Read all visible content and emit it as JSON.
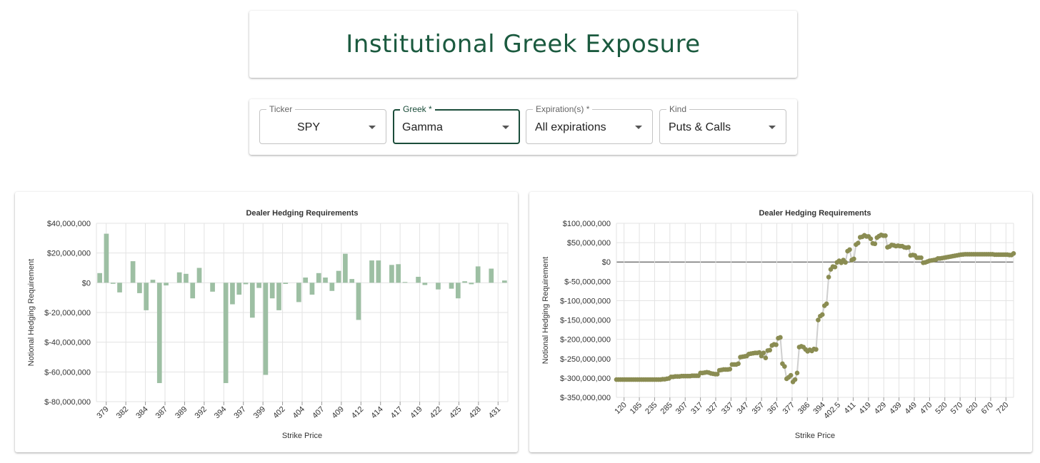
{
  "header": {
    "title": "Institutional Greek Exposure"
  },
  "controls": {
    "ticker": {
      "label": "Ticker",
      "value": "SPY"
    },
    "greek": {
      "label": "Greek *",
      "value": "Gamma"
    },
    "expiration": {
      "label": "Expiration(s) *",
      "value": "All expirations"
    },
    "kind": {
      "label": "Kind",
      "value": "Puts & Calls"
    }
  },
  "icons": {
    "dropdown": "caret-down-icon"
  },
  "colors": {
    "title": "#1b5a3f",
    "bar": "#9dbfa3",
    "point": "#8a8c52",
    "line": "#cfcfcf",
    "active_border": "#1b4d3a"
  },
  "chart_data": [
    {
      "type": "bar",
      "title": "Dealer Hedging Requirements",
      "xlabel": "Strike Price",
      "ylabel": "Notional Hedging Requirement",
      "ylim": [
        -80000000,
        40000000
      ],
      "yticks": [
        40000000,
        20000000,
        0,
        -20000000,
        -40000000,
        -60000000,
        -80000000
      ],
      "ytick_labels": [
        "$40,000,000",
        "$20,000,000",
        "$0",
        "$-20,000,000",
        "$-40,000,000",
        "$-60,000,000",
        "$-80,000,000"
      ],
      "tick_labels": [
        "379",
        "382",
        "384",
        "387",
        "389",
        "392",
        "394",
        "397",
        "399",
        "402",
        "404",
        "407",
        "409",
        "412",
        "414",
        "417",
        "419",
        "422",
        "425",
        "428",
        "431"
      ],
      "grid": true,
      "values": [
        6500000,
        33000000,
        -700000,
        -6500000,
        0,
        14500000,
        -7000000,
        -18500000,
        2000000,
        -67500000,
        -1800000,
        0,
        7000000,
        6000000,
        -10500000,
        10000000,
        0,
        -6000000,
        0,
        -67500000,
        -14500000,
        -8000000,
        -1000000,
        -23500000,
        -3500000,
        -62000000,
        -10500000,
        -18500000,
        -800000,
        0,
        -13000000,
        3500000,
        -8000000,
        6500000,
        3500000,
        -5500000,
        8000000,
        19500000,
        2500000,
        -25000000,
        0,
        15000000,
        15000000,
        0,
        12000000,
        12500000,
        500000,
        0,
        4000000,
        -1500000,
        0,
        -4500000,
        0,
        -4000000,
        -10500000,
        1000000,
        -1000000,
        11000000,
        0,
        9500000,
        0,
        1500000
      ]
    },
    {
      "type": "scatter",
      "title": "Dealer Hedging Requirements",
      "xlabel": "Strike Price",
      "ylabel": "Notional Hedging Requirement",
      "ylim": [
        -350000000,
        100000000
      ],
      "yticks": [
        100000000,
        50000000,
        0,
        -50000000,
        -100000000,
        -150000000,
        -200000000,
        -250000000,
        -300000000,
        -350000000
      ],
      "ytick_labels": [
        "$100,000,000",
        "$50,000,000",
        "$0",
        "$-50,000,000",
        "$-100,000,000",
        "$-150,000,000",
        "$-200,000,000",
        "$-250,000,000",
        "$-300,000,000",
        "$-350,000,000"
      ],
      "tick_labels": [
        "120",
        "185",
        "235",
        "285",
        "307",
        "317",
        "327",
        "337",
        "347",
        "357",
        "367",
        "377",
        "386",
        "394",
        "402.5",
        "411",
        "419",
        "429",
        "439",
        "449",
        "470",
        "520",
        "570",
        "620",
        "670",
        "720"
      ],
      "grid": true,
      "connected": true,
      "values": [
        -304000000,
        -304000000,
        -304000000,
        -304000000,
        -304000000,
        -304000000,
        -304000000,
        -304000000,
        -304000000,
        -304000000,
        -304000000,
        -304000000,
        -304000000,
        -304000000,
        -304000000,
        -304000000,
        -304000000,
        -304000000,
        -304000000,
        -304000000,
        -304000000,
        -304000000,
        -303000000,
        -303000000,
        -302000000,
        -301000000,
        -297000000,
        -297000000,
        -296000000,
        -296000000,
        -296000000,
        -295000000,
        -295000000,
        -295000000,
        -295000000,
        -295000000,
        -294000000,
        -294000000,
        -294000000,
        -294000000,
        -287000000,
        -287000000,
        -286000000,
        -285000000,
        -286000000,
        -288000000,
        -289000000,
        -290000000,
        -290000000,
        -280000000,
        -279000000,
        -278000000,
        -278000000,
        -278000000,
        -277000000,
        -265000000,
        -265000000,
        -265000000,
        -263000000,
        -246000000,
        -245000000,
        -244000000,
        -243000000,
        -238000000,
        -237000000,
        -236000000,
        -235000000,
        -235000000,
        -234000000,
        -243000000,
        -235000000,
        -248000000,
        -229000000,
        -228000000,
        -216000000,
        -213000000,
        -214000000,
        -197000000,
        -195000000,
        -263000000,
        -270000000,
        -302000000,
        -298000000,
        -293000000,
        -310000000,
        -304000000,
        -287000000,
        -220000000,
        -218000000,
        -220000000,
        -226000000,
        -231000000,
        -227000000,
        -230000000,
        -225000000,
        -226000000,
        -150000000,
        -140000000,
        -136000000,
        -113000000,
        -108000000,
        -39000000,
        -19000000,
        -12000000,
        -13000000,
        -1000000,
        3000000,
        -2000000,
        5000000,
        -1000000,
        28000000,
        32000000,
        5000000,
        8000000,
        45000000,
        49000000,
        64000000,
        65000000,
        69000000,
        66000000,
        66000000,
        60000000,
        48000000,
        47000000,
        63000000,
        67000000,
        70000000,
        68000000,
        68000000,
        38000000,
        40000000,
        44000000,
        43000000,
        41000000,
        42000000,
        41000000,
        41000000,
        38000000,
        37000000,
        38000000,
        17000000,
        18000000,
        17000000,
        11000000,
        11000000,
        11000000,
        -2000000,
        -1000000,
        1000000,
        3000000,
        4000000,
        5000000,
        6000000,
        9000000,
        9000000,
        10000000,
        11000000,
        12000000,
        13000000,
        14000000,
        15000000,
        16000000,
        17000000,
        18000000,
        19000000,
        19500000,
        20000000,
        20000000,
        20000000,
        20000000,
        20000000,
        20000000,
        20000000,
        20000000,
        20000000,
        20000000,
        20000000,
        20000000,
        20000000,
        20000000,
        19000000,
        19000000,
        19000000,
        19000000,
        19000000,
        19000000,
        19000000,
        18000000,
        18000000,
        22000000
      ]
    }
  ]
}
